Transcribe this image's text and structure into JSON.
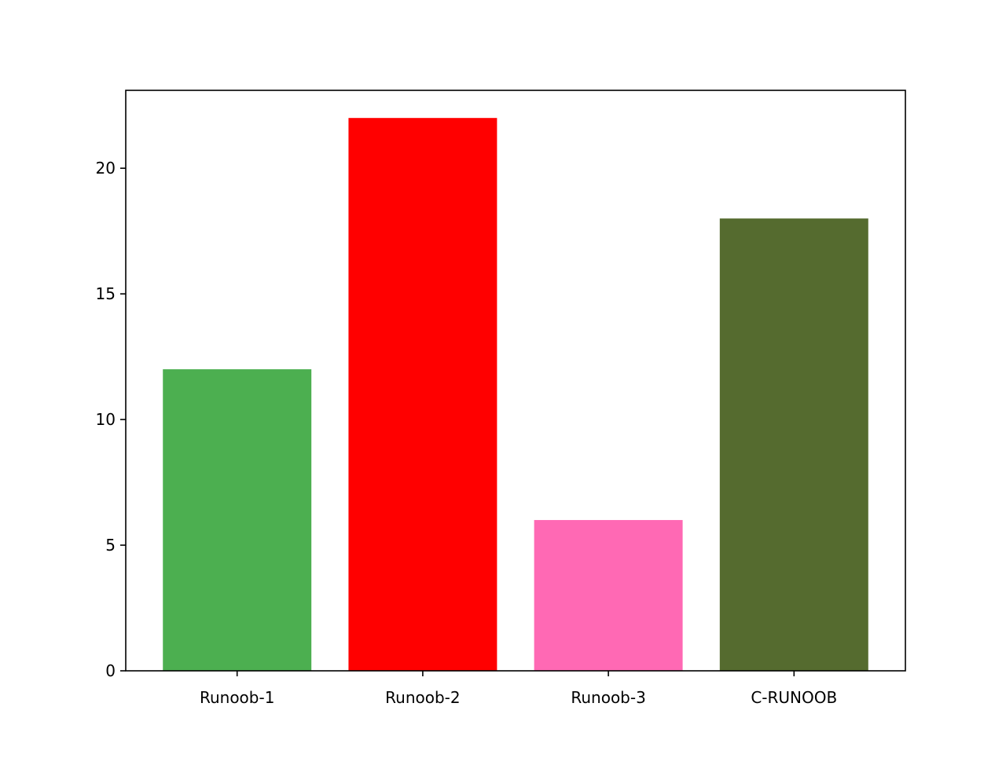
{
  "chart_data": {
    "type": "bar",
    "title": "",
    "xlabel": "",
    "ylabel": "",
    "categories": [
      "Runoob-1",
      "Runoob-2",
      "Runoob-3",
      "C-RUNOOB"
    ],
    "values": [
      12,
      22,
      6,
      18
    ],
    "colors": [
      "#4CAF50",
      "#FF0000",
      "#FF69B4",
      "#556B2F"
    ],
    "ylim": [
      0,
      23.1
    ],
    "yticks": [
      0,
      5,
      10,
      15,
      20
    ],
    "grid": false,
    "legend": "none"
  }
}
